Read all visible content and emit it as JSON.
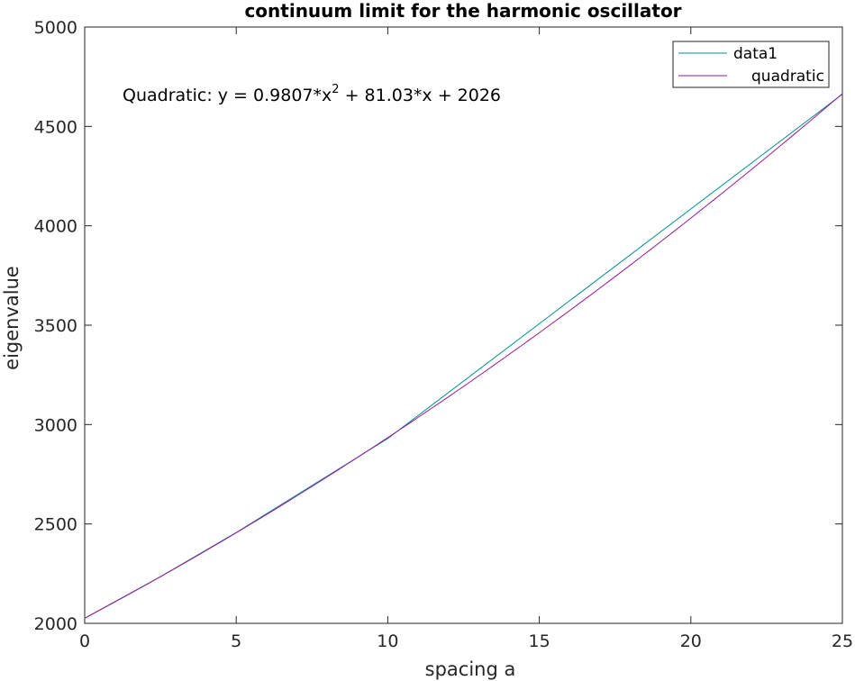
{
  "chart_data": {
    "type": "line",
    "title": "continuum limit for the harmonic oscillator",
    "xlabel": "spacing a",
    "ylabel": "eigenvalue",
    "xlim": [
      0,
      25
    ],
    "ylim": [
      2000,
      5000
    ],
    "xticks": [
      0,
      5,
      10,
      15,
      20,
      25
    ],
    "yticks": [
      2000,
      2500,
      3000,
      3500,
      4000,
      4500,
      5000
    ],
    "grid": false,
    "legend_position": "top-right",
    "series": [
      {
        "name": "data1",
        "color": "#0a8f8f",
        "x": [
          0,
          2.5,
          5,
          10,
          25
        ],
        "y": [
          2026,
          2235,
          2457,
          2930,
          4662
        ]
      },
      {
        "name": "quadratic",
        "color": "#9b1a8f",
        "fit": {
          "a2": 0.9807,
          "a1": 81.03,
          "a0": 2026
        }
      }
    ],
    "annotation": {
      "prefix": "Quadratic:  y = 0.9807*x",
      "superscript": "2",
      "suffix": " + 81.03*x + 2026"
    }
  }
}
